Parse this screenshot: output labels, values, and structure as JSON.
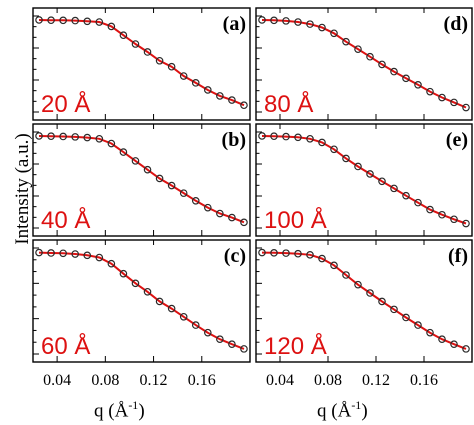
{
  "figure": {
    "ylabel": "Intensity (a.u.)",
    "xlabel_prefix": "q (",
    "xlabel_unit": "Å",
    "xlabel_exp": "-1",
    "xlabel_suffix": ")",
    "xticks_left": [
      "0.04",
      "0.08",
      "0.12",
      "0.16"
    ],
    "xticks_right": [
      "0.04",
      "0.08",
      "0.12",
      "0.16"
    ],
    "colors": {
      "measured": "#2a2a2a",
      "fit": "#dd1111",
      "annotation": "#dd1111",
      "axis": "#000000"
    }
  },
  "chart_data": [
    {
      "type": "line",
      "panel": "(a)",
      "annotation": "20 Å",
      "xlim": [
        0.02,
        0.2
      ],
      "ylog": true,
      "series": [
        {
          "name": "",
          "style": "open-circles",
          "x": [
            0.025,
            0.035,
            0.045,
            0.055,
            0.065,
            0.075,
            0.085,
            0.095,
            0.105,
            0.115,
            0.125,
            0.135,
            0.145,
            0.155,
            0.165,
            0.175,
            0.185,
            0.195
          ],
          "y": [
            1.0,
            0.98,
            0.97,
            0.95,
            0.9,
            0.85,
            0.6,
            0.3,
            0.15,
            0.08,
            0.04,
            0.025,
            0.012,
            0.007,
            0.004,
            0.0025,
            0.0018,
            0.0012
          ]
        },
        {
          "name": "",
          "style": "line",
          "x": [
            0.025,
            0.035,
            0.045,
            0.055,
            0.065,
            0.075,
            0.085,
            0.095,
            0.105,
            0.115,
            0.125,
            0.135,
            0.145,
            0.155,
            0.165,
            0.175,
            0.185,
            0.195
          ],
          "y": [
            1.0,
            0.98,
            0.97,
            0.95,
            0.9,
            0.85,
            0.6,
            0.3,
            0.15,
            0.08,
            0.04,
            0.025,
            0.012,
            0.007,
            0.004,
            0.0025,
            0.0018,
            0.0012
          ]
        }
      ]
    },
    {
      "type": "line",
      "panel": "(b)",
      "annotation": "40 Å",
      "xlim": [
        0.02,
        0.2
      ],
      "ylog": true,
      "series": [
        {
          "name": "",
          "style": "open-circles",
          "x": [
            0.025,
            0.035,
            0.045,
            0.055,
            0.065,
            0.075,
            0.085,
            0.095,
            0.105,
            0.115,
            0.125,
            0.135,
            0.145,
            0.155,
            0.165,
            0.175,
            0.185,
            0.195
          ],
          "y": [
            1.0,
            0.98,
            0.96,
            0.93,
            0.88,
            0.8,
            0.55,
            0.28,
            0.14,
            0.07,
            0.035,
            0.02,
            0.011,
            0.006,
            0.0035,
            0.0022,
            0.0016,
            0.0011
          ]
        },
        {
          "name": "",
          "style": "line",
          "x": [
            0.025,
            0.035,
            0.045,
            0.055,
            0.065,
            0.075,
            0.085,
            0.095,
            0.105,
            0.115,
            0.125,
            0.135,
            0.145,
            0.155,
            0.165,
            0.175,
            0.185,
            0.195
          ],
          "y": [
            1.0,
            0.98,
            0.96,
            0.93,
            0.88,
            0.8,
            0.55,
            0.28,
            0.14,
            0.07,
            0.035,
            0.02,
            0.011,
            0.006,
            0.0035,
            0.0022,
            0.0016,
            0.0011
          ]
        }
      ]
    },
    {
      "type": "line",
      "panel": "(c)",
      "annotation": "60 Å",
      "xlim": [
        0.02,
        0.2
      ],
      "ylog": true,
      "series": [
        {
          "name": "",
          "style": "open-circles",
          "x": [
            0.025,
            0.035,
            0.045,
            0.055,
            0.065,
            0.075,
            0.085,
            0.095,
            0.105,
            0.115,
            0.125,
            0.135,
            0.145,
            0.155,
            0.165,
            0.175,
            0.185,
            0.195
          ],
          "y": [
            1.0,
            0.97,
            0.95,
            0.9,
            0.82,
            0.7,
            0.45,
            0.22,
            0.11,
            0.06,
            0.03,
            0.018,
            0.01,
            0.0055,
            0.0032,
            0.002,
            0.0014,
            0.001
          ]
        },
        {
          "name": "",
          "style": "line",
          "x": [
            0.025,
            0.035,
            0.045,
            0.055,
            0.065,
            0.075,
            0.085,
            0.095,
            0.105,
            0.115,
            0.125,
            0.135,
            0.145,
            0.155,
            0.165,
            0.175,
            0.185,
            0.195
          ],
          "y": [
            1.0,
            0.97,
            0.95,
            0.9,
            0.82,
            0.7,
            0.45,
            0.22,
            0.11,
            0.06,
            0.03,
            0.018,
            0.01,
            0.0055,
            0.0032,
            0.002,
            0.0014,
            0.001
          ]
        }
      ]
    },
    {
      "type": "line",
      "panel": "(d)",
      "annotation": "80 Å",
      "xlim": [
        0.02,
        0.2
      ],
      "ylog": true,
      "series": [
        {
          "name": "",
          "style": "open-circles",
          "x": [
            0.025,
            0.035,
            0.045,
            0.055,
            0.065,
            0.075,
            0.085,
            0.095,
            0.105,
            0.115,
            0.125,
            0.135,
            0.145,
            0.155,
            0.165,
            0.175,
            0.185,
            0.195
          ],
          "y": [
            1.0,
            0.97,
            0.93,
            0.85,
            0.72,
            0.55,
            0.35,
            0.18,
            0.1,
            0.055,
            0.03,
            0.017,
            0.01,
            0.006,
            0.0035,
            0.0022,
            0.0015,
            0.001
          ]
        },
        {
          "name": "",
          "style": "line",
          "x": [
            0.025,
            0.035,
            0.045,
            0.055,
            0.065,
            0.075,
            0.085,
            0.095,
            0.105,
            0.115,
            0.125,
            0.135,
            0.145,
            0.155,
            0.165,
            0.175,
            0.185,
            0.195
          ],
          "y": [
            1.0,
            0.97,
            0.93,
            0.85,
            0.72,
            0.55,
            0.35,
            0.18,
            0.1,
            0.055,
            0.03,
            0.017,
            0.01,
            0.006,
            0.0035,
            0.0022,
            0.0015,
            0.001
          ]
        }
      ]
    },
    {
      "type": "line",
      "panel": "(e)",
      "annotation": "100 Å",
      "xlim": [
        0.02,
        0.2
      ],
      "ylog": true,
      "series": [
        {
          "name": "",
          "style": "open-circles",
          "x": [
            0.025,
            0.035,
            0.045,
            0.055,
            0.065,
            0.075,
            0.085,
            0.095,
            0.105,
            0.115,
            0.125,
            0.135,
            0.145,
            0.155,
            0.165,
            0.175,
            0.185,
            0.195
          ],
          "y": [
            1.0,
            0.98,
            0.95,
            0.9,
            0.8,
            0.6,
            0.35,
            0.17,
            0.09,
            0.05,
            0.028,
            0.016,
            0.009,
            0.0052,
            0.003,
            0.002,
            0.0014,
            0.001
          ]
        },
        {
          "name": "",
          "style": "line",
          "x": [
            0.025,
            0.035,
            0.045,
            0.055,
            0.065,
            0.075,
            0.085,
            0.095,
            0.105,
            0.115,
            0.125,
            0.135,
            0.145,
            0.155,
            0.165,
            0.175,
            0.185,
            0.195
          ],
          "y": [
            1.0,
            0.98,
            0.95,
            0.9,
            0.8,
            0.6,
            0.35,
            0.17,
            0.09,
            0.05,
            0.028,
            0.016,
            0.009,
            0.0052,
            0.003,
            0.002,
            0.0014,
            0.001
          ]
        }
      ]
    },
    {
      "type": "line",
      "panel": "(f)",
      "annotation": "120 Å",
      "xlim": [
        0.02,
        0.2
      ],
      "ylog": true,
      "series": [
        {
          "name": "",
          "style": "open-circles",
          "x": [
            0.025,
            0.035,
            0.045,
            0.055,
            0.065,
            0.075,
            0.085,
            0.095,
            0.105,
            0.115,
            0.125,
            0.135,
            0.145,
            0.155,
            0.165,
            0.175,
            0.185,
            0.195
          ],
          "y": [
            1.0,
            0.98,
            0.96,
            0.92,
            0.85,
            0.65,
            0.4,
            0.2,
            0.1,
            0.055,
            0.03,
            0.017,
            0.0095,
            0.0055,
            0.0032,
            0.002,
            0.0014,
            0.001
          ]
        },
        {
          "name": "",
          "style": "line",
          "x": [
            0.025,
            0.035,
            0.045,
            0.055,
            0.065,
            0.075,
            0.085,
            0.095,
            0.105,
            0.115,
            0.125,
            0.135,
            0.145,
            0.155,
            0.165,
            0.175,
            0.185,
            0.195
          ],
          "y": [
            1.0,
            0.98,
            0.96,
            0.92,
            0.85,
            0.65,
            0.4,
            0.2,
            0.1,
            0.055,
            0.03,
            0.017,
            0.0095,
            0.0055,
            0.0032,
            0.002,
            0.0014,
            0.001
          ]
        }
      ]
    }
  ]
}
